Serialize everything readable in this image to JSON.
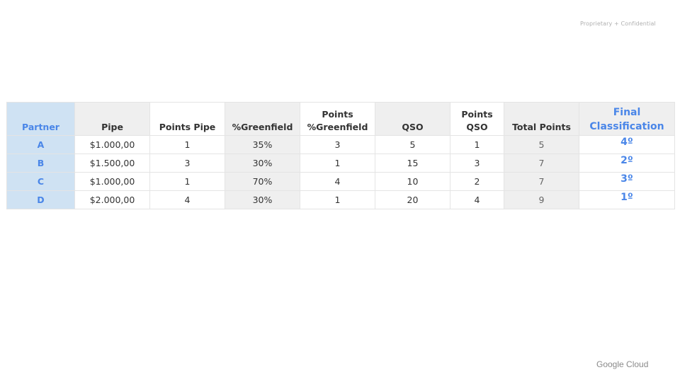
{
  "slide": {
    "confidential": "Proprietary + Confidential",
    "brand": "Google Cloud"
  },
  "table": {
    "headers": [
      "Partner",
      "Pipe",
      "Points Pipe",
      "%Greenfield",
      "Points %Greenfield",
      "QSO",
      "Points QSO",
      "Total Points",
      "Final Classification"
    ],
    "rows": [
      [
        "A",
        "$1.000,00",
        "1",
        "35%",
        "3",
        "5",
        "1",
        "5",
        "4º"
      ],
      [
        "B",
        "$1.500,00",
        "3",
        "30%",
        "1",
        "15",
        "3",
        "7",
        "2º"
      ],
      [
        "C",
        "$1.000,00",
        "1",
        "70%",
        "4",
        "10",
        "2",
        "7",
        "3º"
      ],
      [
        "D",
        "$2.000,00",
        "4",
        "30%",
        "1",
        "20",
        "4",
        "9",
        "1º"
      ]
    ]
  },
  "colors": {
    "accent_blue": "#4a86e8",
    "partner_bg": "#cfe2f3",
    "gray_bg": "#efefef"
  }
}
